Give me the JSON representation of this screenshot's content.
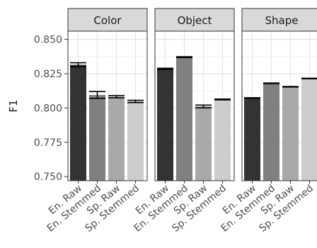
{
  "chart_data": {
    "type": "bar",
    "ylabel": "F1",
    "ylim": [
      0.747,
      0.856
    ],
    "yticks": [
      0.75,
      0.775,
      0.8,
      0.825,
      0.85
    ],
    "ytick_labels": [
      "0.750",
      "0.775",
      "0.800",
      "0.825",
      "0.850"
    ],
    "grid": true,
    "categories": [
      "En. Raw",
      "En. Stemmed",
      "Sp. Raw",
      "Sp. Stemmed"
    ],
    "bar_colors": [
      "#333333",
      "#808080",
      "#a9a9a9",
      "#cccccc"
    ],
    "facets": [
      {
        "title": "Color",
        "values": [
          0.8315,
          0.8095,
          0.8082,
          0.8048
        ],
        "errors": [
          0.0015,
          0.0025,
          0.0008,
          0.0008
        ]
      },
      {
        "title": "Object",
        "values": [
          0.8286,
          0.8371,
          0.8011,
          0.8062
        ],
        "errors": [
          0.0004,
          0.0003,
          0.001,
          0.0003
        ]
      },
      {
        "title": "Shape",
        "values": [
          0.8073,
          0.818,
          0.8155,
          0.8215
        ],
        "errors": [
          0.0002,
          0.0002,
          0.0002,
          0.0002
        ]
      }
    ]
  }
}
